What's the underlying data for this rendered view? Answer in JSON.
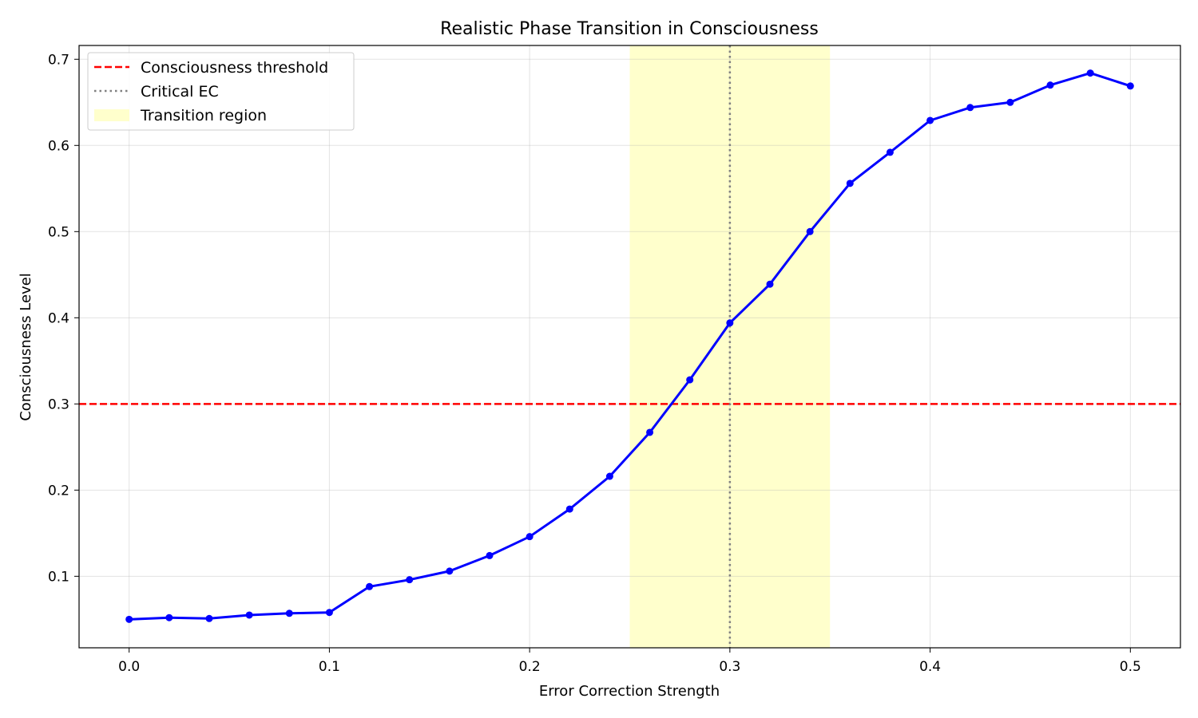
{
  "chart_data": {
    "type": "line",
    "title": "Realistic Phase Transition in Consciousness",
    "xlabel": "Error Correction Strength",
    "ylabel": "Consciousness Level",
    "xlim": [
      -0.025,
      0.525
    ],
    "ylim": [
      0.017,
      0.716
    ],
    "xticks": [
      0.0,
      0.1,
      0.2,
      0.3,
      0.4,
      0.5
    ],
    "xtick_labels": [
      "0.0",
      "0.1",
      "0.2",
      "0.3",
      "0.4",
      "0.5"
    ],
    "yticks": [
      0.1,
      0.2,
      0.3,
      0.4,
      0.5,
      0.6,
      0.7
    ],
    "ytick_labels": [
      "0.1",
      "0.2",
      "0.3",
      "0.4",
      "0.5",
      "0.6",
      "0.7"
    ],
    "grid": true,
    "legend_position": "top-left",
    "series": [
      {
        "color": "#0000ff",
        "x": [
          0.0,
          0.02,
          0.04,
          0.06,
          0.08,
          0.1,
          0.12,
          0.14,
          0.16,
          0.18,
          0.2,
          0.22,
          0.24,
          0.26,
          0.28,
          0.3,
          0.32,
          0.34,
          0.36,
          0.38,
          0.4,
          0.42,
          0.44,
          0.46,
          0.48,
          0.5
        ],
        "y": [
          0.05,
          0.052,
          0.051,
          0.055,
          0.057,
          0.058,
          0.088,
          0.096,
          0.106,
          0.124,
          0.146,
          0.178,
          0.216,
          0.267,
          0.328,
          0.394,
          0.439,
          0.5,
          0.556,
          0.592,
          0.629,
          0.644,
          0.65,
          0.67,
          0.684,
          0.669
        ]
      }
    ],
    "threshold": {
      "label": "Consciousness threshold",
      "y": 0.3,
      "color": "#ff0000",
      "style": "dashed"
    },
    "critical": {
      "label": "Critical EC",
      "x": 0.3,
      "color": "#808080",
      "style": "dotted"
    },
    "region": {
      "label": "Transition region",
      "x_start": 0.25,
      "x_end": 0.35,
      "color": "#ffffcc"
    }
  }
}
